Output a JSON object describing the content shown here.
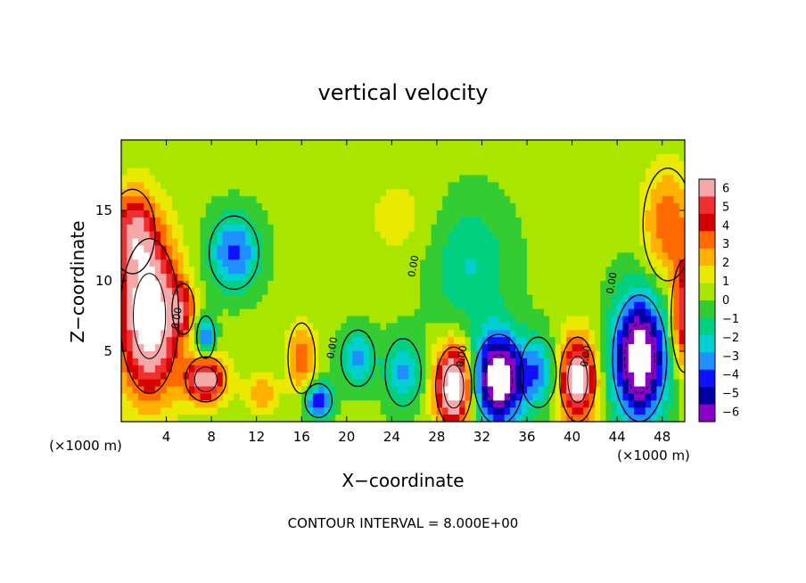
{
  "chart_data": {
    "type": "heatmap",
    "title": "vertical velocity",
    "xlabel": "X−coordinate",
    "ylabel": "Z−coordinate",
    "x_units": "(×1000 m)",
    "y_units": "(×1000 m)",
    "footer": "CONTOUR INTERVAL = 8.000E+00",
    "xlim": [
      0,
      50
    ],
    "ylim": [
      0,
      20
    ],
    "x_ticks": [
      4,
      8,
      12,
      16,
      20,
      24,
      28,
      32,
      36,
      40,
      44,
      48
    ],
    "y_ticks": [
      5,
      10,
      15
    ],
    "colorbar": {
      "ticks": [
        "6",
        "5",
        "4",
        "3",
        "2",
        "1",
        "0",
        "−1",
        "−2",
        "−3",
        "−4",
        "−5",
        "−6"
      ],
      "colors": [
        "#f4a8a8",
        "#ef3030",
        "#d60000",
        "#ff6a00",
        "#ffb000",
        "#eaea00",
        "#a8e600",
        "#33cc33",
        "#00d080",
        "#00d0d0",
        "#1e90ff",
        "#1010ff",
        "#0000a0",
        "#8a00c8"
      ],
      "range": [
        -6,
        6
      ]
    },
    "contour_labels": [
      "0.00"
    ],
    "features": [
      {
        "x": 2.5,
        "z": 7.5,
        "sign": "positive",
        "peak": 8,
        "rx": 2.6,
        "rz": 5.5
      },
      {
        "x": 1.0,
        "z": 13.5,
        "sign": "positive",
        "peak": 4,
        "rx": 2.0,
        "rz": 3.0
      },
      {
        "x": 7.5,
        "z": 3.0,
        "sign": "positive",
        "peak": 6,
        "rx": 1.8,
        "rz": 1.6
      },
      {
        "x": 5.5,
        "z": 8.0,
        "sign": "positive",
        "peak": 3,
        "rx": 1.0,
        "rz": 1.8
      },
      {
        "x": 7.5,
        "z": 6.0,
        "sign": "negative",
        "peak": -4,
        "rx": 0.8,
        "rz": 1.5
      },
      {
        "x": 10.0,
        "z": 12.0,
        "sign": "negative",
        "peak": -4,
        "rx": 2.2,
        "rz": 2.6
      },
      {
        "x": 12.5,
        "z": 2.0,
        "sign": "positive",
        "peak": 2,
        "rx": 1.5,
        "rz": 1.5
      },
      {
        "x": 16.0,
        "z": 4.5,
        "sign": "positive",
        "peak": 3,
        "rx": 1.2,
        "rz": 2.5
      },
      {
        "x": 17.5,
        "z": 1.5,
        "sign": "negative",
        "peak": -5,
        "rx": 1.2,
        "rz": 1.2
      },
      {
        "x": 21.0,
        "z": 4.5,
        "sign": "negative",
        "peak": -3,
        "rx": 1.5,
        "rz": 2.0
      },
      {
        "x": 25.0,
        "z": 3.5,
        "sign": "negative",
        "peak": -3,
        "rx": 1.6,
        "rz": 2.4
      },
      {
        "x": 29.5,
        "z": 2.5,
        "sign": "positive",
        "peak": 8,
        "rx": 1.6,
        "rz": 2.8
      },
      {
        "x": 33.5,
        "z": 3.0,
        "sign": "negative",
        "peak": -8,
        "rx": 2.2,
        "rz": 3.2
      },
      {
        "x": 37.0,
        "z": 3.5,
        "sign": "negative",
        "peak": -3,
        "rx": 1.6,
        "rz": 2.5
      },
      {
        "x": 40.5,
        "z": 3.0,
        "sign": "positive",
        "peak": 7,
        "rx": 1.6,
        "rz": 3.0
      },
      {
        "x": 46.0,
        "z": 4.5,
        "sign": "negative",
        "peak": -8,
        "rx": 2.4,
        "rz": 4.5
      },
      {
        "x": 48.5,
        "z": 14.0,
        "sign": "positive",
        "peak": 3,
        "rx": 2.2,
        "rz": 4.0
      },
      {
        "x": 50.0,
        "z": 7.5,
        "sign": "positive",
        "peak": 5,
        "rx": 1.2,
        "rz": 4.0
      },
      {
        "x": 31.0,
        "z": 11.0,
        "sign": "negative",
        "peak": -2,
        "rx": 3.5,
        "rz": 4.5
      },
      {
        "x": 24.5,
        "z": 14.5,
        "sign": "positive",
        "peak": 1,
        "rx": 3.0,
        "rz": 3.0
      }
    ]
  }
}
